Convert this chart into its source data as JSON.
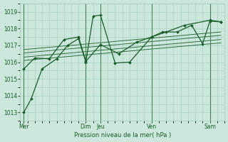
{
  "bg_color": "#cce8dc",
  "grid_color": "#a0ccbc",
  "line_color": "#1a5c2a",
  "axis_color": "#1a5c2a",
  "xlabel": "Pression niveau de la mer( hPa )",
  "ylim": [
    1012.5,
    1019.5
  ],
  "yticks": [
    1013,
    1014,
    1015,
    1016,
    1017,
    1018,
    1019
  ],
  "x_day_labels": [
    "Mer",
    "Dim",
    "Jeu",
    "Ven",
    "Sam"
  ],
  "x_day_pos": [
    0,
    8.5,
    10.5,
    17.5,
    25.5
  ],
  "xlim": [
    -0.5,
    27.5
  ],
  "series_main": {
    "x": [
      0,
      1.0,
      2.5,
      4.5,
      6.0,
      7.5,
      8.5,
      9.5,
      10.5,
      12.5,
      14.5,
      17.5,
      19.0,
      21.0,
      23.0,
      24.5,
      25.5,
      27.0
    ],
    "y": [
      1013.0,
      1013.8,
      1015.6,
      1016.2,
      1017.0,
      1017.4,
      1016.0,
      1018.75,
      1018.8,
      1015.95,
      1016.0,
      1017.5,
      1017.8,
      1017.8,
      1018.2,
      1017.1,
      1018.45,
      1018.4
    ]
  },
  "series2": {
    "x": [
      0,
      1.5,
      3.5,
      5.5,
      7.5,
      8.5,
      10.5,
      13.0,
      15.5,
      17.5,
      19.5,
      22.0,
      25.5,
      27.0
    ],
    "y": [
      1015.6,
      1016.25,
      1016.2,
      1017.35,
      1017.5,
      1016.05,
      1017.05,
      1016.5,
      1017.2,
      1017.5,
      1017.8,
      1018.2,
      1018.5,
      1018.4
    ]
  },
  "trend_lines": [
    {
      "x": [
        0,
        27
      ],
      "y": [
        1016.1,
        1017.15
      ]
    },
    {
      "x": [
        0,
        27
      ],
      "y": [
        1016.3,
        1017.35
      ]
    },
    {
      "x": [
        0,
        27
      ],
      "y": [
        1016.55,
        1017.6
      ]
    },
    {
      "x": [
        0,
        27
      ],
      "y": [
        1016.75,
        1017.8
      ]
    }
  ],
  "vlines": [
    0,
    8.5,
    10.5,
    17.5,
    25.5
  ],
  "lw": 0.9,
  "marker": "D",
  "ms": 2.0
}
